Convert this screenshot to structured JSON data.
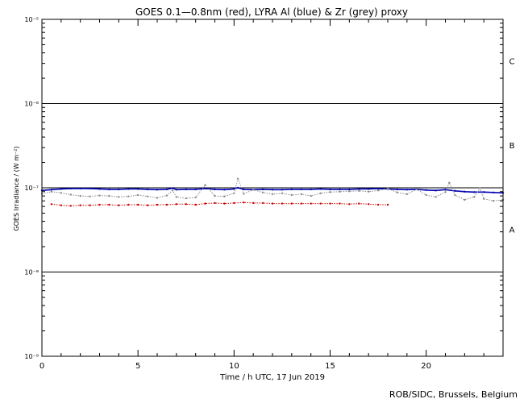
{
  "chart_data": {
    "type": "scatter",
    "title": "GOES 0.1—0.8nm (red), LYRA Al (blue) & Zr (grey) proxy",
    "xlabel": "Time / h UTC, 17 Jun 2019",
    "ylabel": "GOES Irradiance / (W m⁻²)",
    "xlim": [
      0,
      24
    ],
    "ylim": [
      1e-09,
      1e-05
    ],
    "y_scale": "log",
    "x_ticks": [
      0,
      5,
      10,
      15,
      20
    ],
    "x_tick_labels": [
      "0",
      "5",
      "10",
      "15",
      "20"
    ],
    "y_ticks": [
      1e-09,
      1e-08,
      1e-07,
      1e-06,
      1e-05
    ],
    "y_tick_labels": [
      "10⁻⁹",
      "10⁻⁸",
      "10⁻⁷",
      "10⁻⁶",
      "10⁻⁵"
    ],
    "class_levels": [
      1e-08,
      1e-07,
      1e-06
    ],
    "class_labels": [
      {
        "label": "C",
        "y": 3.2e-06
      },
      {
        "label": "B",
        "y": 3.2e-07
      },
      {
        "label": "A",
        "y": 3.2e-08
      }
    ],
    "series": [
      {
        "name": "LYRA Al",
        "color": "#0000b4",
        "x": [
          0,
          0.5,
          1,
          1.5,
          2,
          2.5,
          3,
          3.5,
          4,
          4.5,
          5,
          5.5,
          6,
          6.5,
          6.8,
          7,
          7.5,
          8,
          8.5,
          9,
          9.5,
          10,
          10.2,
          10.5,
          11,
          11.5,
          12,
          12.5,
          13,
          13.5,
          14,
          14.5,
          15,
          15.5,
          16,
          16.5,
          17,
          17.5,
          18,
          18.5,
          19,
          19.5,
          20,
          20.5,
          21,
          21.5,
          22,
          22.5,
          23,
          23.5,
          24
        ],
        "y": [
          9.3e-08,
          9.5e-08,
          9.7e-08,
          9.8e-08,
          9.8e-08,
          9.8e-08,
          9.7e-08,
          9.6e-08,
          9.6e-08,
          9.7e-08,
          9.7e-08,
          9.6e-08,
          9.5e-08,
          9.6e-08,
          9.9e-08,
          9.5e-08,
          9.6e-08,
          9.6e-08,
          9.8e-08,
          9.6e-08,
          9.5e-08,
          9.7e-08,
          1e-07,
          9.6e-08,
          9.5e-08,
          9.6e-08,
          9.5e-08,
          9.5e-08,
          9.6e-08,
          9.6e-08,
          9.6e-08,
          9.7e-08,
          9.6e-08,
          9.6e-08,
          9.6e-08,
          9.7e-08,
          9.7e-08,
          9.8e-08,
          9.7e-08,
          9.6e-08,
          9.5e-08,
          9.6e-08,
          9.4e-08,
          9.3e-08,
          9.5e-08,
          9.2e-08,
          9e-08,
          8.9e-08,
          8.9e-08,
          8.8e-08,
          8.7e-08
        ]
      },
      {
        "name": "Zr",
        "color": "#8c8c8c",
        "x": [
          0,
          0.5,
          1,
          1.5,
          2,
          2.5,
          3,
          3.5,
          4,
          4.5,
          5,
          5.5,
          6,
          6.5,
          6.8,
          7,
          7.5,
          8,
          8.5,
          9,
          9.5,
          10,
          10.2,
          10.5,
          11,
          11.5,
          12,
          12.5,
          13,
          13.5,
          14,
          14.5,
          15,
          15.5,
          16,
          16.5,
          17,
          17.5,
          18,
          18.5,
          19,
          19.5,
          20,
          20.5,
          21,
          21.2,
          21.5,
          22,
          22.5,
          22.8,
          23,
          23.5,
          24
        ],
        "y": [
          8.5e-08,
          9e-08,
          8.7e-08,
          8.3e-08,
          8e-08,
          7.9e-08,
          8.1e-08,
          8e-08,
          7.8e-08,
          7.9e-08,
          8.2e-08,
          7.9e-08,
          7.6e-08,
          8.1e-08,
          9.3e-08,
          7.8e-08,
          7.5e-08,
          7.7e-08,
          1.08e-07,
          8e-08,
          7.9e-08,
          8.6e-08,
          1.28e-07,
          8.5e-08,
          9.5e-08,
          8.8e-08,
          8.4e-08,
          8.6e-08,
          8.2e-08,
          8.4e-08,
          8e-08,
          8.6e-08,
          8.9e-08,
          9e-08,
          9.1e-08,
          9.2e-08,
          9e-08,
          9.3e-08,
          9.8e-08,
          8.8e-08,
          8.4e-08,
          9.6e-08,
          8.2e-08,
          7.8e-08,
          8.9e-08,
          1.15e-07,
          8.2e-08,
          7.2e-08,
          7.8e-08,
          9.9e-08,
          7.4e-08,
          7e-08,
          7.2e-08
        ]
      },
      {
        "name": "GOES 0.1—0.8nm",
        "color": "#cc0000",
        "x": [
          0.5,
          1,
          1.5,
          2,
          2.5,
          3,
          3.5,
          4,
          4.5,
          5,
          5.5,
          6,
          6.5,
          7,
          7.5,
          8,
          8.5,
          9,
          9.5,
          10,
          10.5,
          11,
          11.5,
          12,
          12.5,
          13,
          13.5,
          14,
          14.5,
          15,
          15.5,
          16,
          16.5,
          17,
          17.5,
          18
        ],
        "y": [
          6.4e-08,
          6.2e-08,
          6.1e-08,
          6.2e-08,
          6.2e-08,
          6.3e-08,
          6.3e-08,
          6.2e-08,
          6.3e-08,
          6.3e-08,
          6.2e-08,
          6.3e-08,
          6.3e-08,
          6.4e-08,
          6.4e-08,
          6.3e-08,
          6.5e-08,
          6.6e-08,
          6.5e-08,
          6.6e-08,
          6.7e-08,
          6.6e-08,
          6.6e-08,
          6.5e-08,
          6.5e-08,
          6.5e-08,
          6.5e-08,
          6.5e-08,
          6.5e-08,
          6.5e-08,
          6.5e-08,
          6.4e-08,
          6.5e-08,
          6.4e-08,
          6.3e-08,
          6.3e-08
        ]
      }
    ]
  },
  "credit": "ROB/SIDC, Brussels, Belgium"
}
